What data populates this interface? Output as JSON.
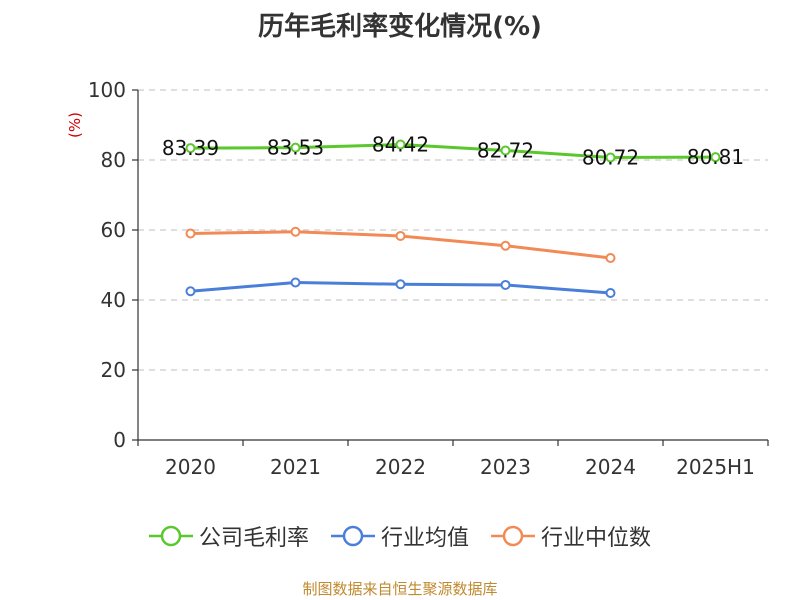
{
  "chart_data": {
    "type": "line",
    "title": "历年毛利率变化情况(%)",
    "ylabel": "(%)",
    "xlabel": "",
    "categories": [
      "2020",
      "2021",
      "2022",
      "2023",
      "2024",
      "2025H1"
    ],
    "ylim": [
      0,
      100
    ],
    "yticks": [
      0,
      20,
      40,
      60,
      80,
      100
    ],
    "grid": true,
    "legend_position": "bottom",
    "series": [
      {
        "name": "公司毛利率",
        "color": "#5ac82d",
        "values": [
          83.39,
          83.53,
          84.42,
          82.72,
          80.72,
          80.81
        ],
        "labels": [
          "83.39",
          "83.53",
          "84.42",
          "82.72",
          "80.72",
          "80.81"
        ]
      },
      {
        "name": "行业均值",
        "color": "#4a7fd9",
        "values": [
          42.5,
          45.0,
          44.5,
          44.3,
          42.0,
          null
        ]
      },
      {
        "name": "行业中位数",
        "color": "#f28a55",
        "values": [
          59.0,
          59.5,
          58.3,
          55.5,
          52.0,
          null
        ]
      }
    ]
  },
  "source": "制图数据来自恒生聚源数据库"
}
